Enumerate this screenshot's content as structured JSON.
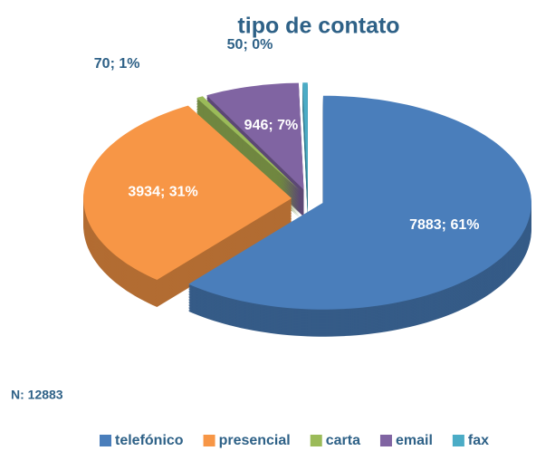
{
  "chart_data": {
    "type": "pie",
    "title": "tipo de contato",
    "categories": [
      "telefónico",
      "presencial",
      "carta",
      "email",
      "fax"
    ],
    "values": [
      7883,
      3934,
      70,
      946,
      50
    ],
    "value_labels": [
      "7883; 61%",
      "3934; 31%",
      "70; 1%",
      "946; 7%",
      "50; 0%"
    ],
    "colors": [
      "#4a7ebb",
      "#f79646",
      "#9bbb59",
      "#8064a2",
      "#4bacc6"
    ],
    "annotation": "N: 12883",
    "legend": "bottom"
  }
}
